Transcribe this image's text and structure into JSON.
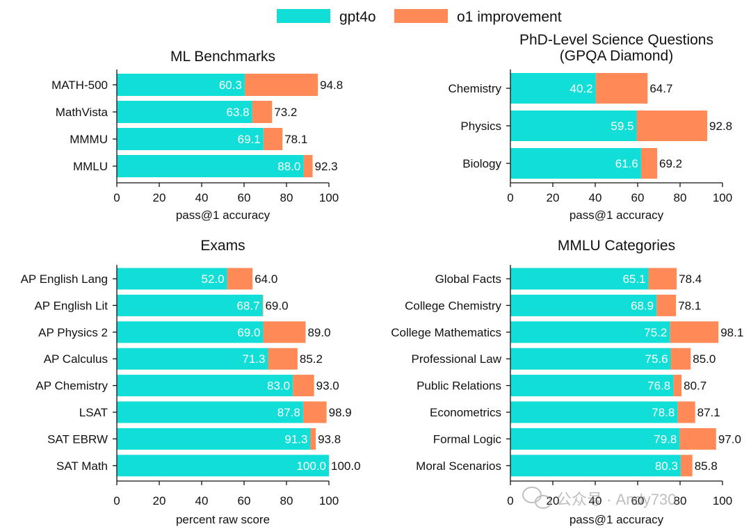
{
  "colors": {
    "gpt4o": "#12DED8",
    "o1_improvement": "#FF8A57",
    "axis": "#111111"
  },
  "legend": {
    "gpt4o": "gpt4o",
    "o1_improvement": "o1 improvement"
  },
  "watermark": "公众号 · Andy730",
  "chart_data": [
    {
      "type": "bar",
      "orientation": "horizontal",
      "stacked": true,
      "title": "ML Benchmarks",
      "xlabel": "pass@1 accuracy",
      "xlim": [
        0,
        100
      ],
      "xticks": [
        0,
        20,
        40,
        60,
        80,
        100
      ],
      "categories": [
        "MATH-500",
        "MathVista",
        "MMMU",
        "MMLU"
      ],
      "series": [
        {
          "name": "gpt4o",
          "values": [
            60.3,
            63.8,
            69.1,
            88.0
          ]
        },
        {
          "name": "o1 improvement",
          "totals": [
            94.8,
            73.2,
            78.1,
            92.3
          ]
        }
      ]
    },
    {
      "type": "bar",
      "orientation": "horizontal",
      "stacked": true,
      "title": "PhD-Level Science Questions\n(GPQA Diamond)",
      "xlabel": "pass@1 accuracy",
      "xlim": [
        0,
        100
      ],
      "xticks": [
        0,
        20,
        40,
        60,
        80,
        100
      ],
      "categories": [
        "Chemistry",
        "Physics",
        "Biology"
      ],
      "series": [
        {
          "name": "gpt4o",
          "values": [
            40.2,
            59.5,
            61.6
          ]
        },
        {
          "name": "o1 improvement",
          "totals": [
            64.7,
            92.8,
            69.2
          ]
        }
      ]
    },
    {
      "type": "bar",
      "orientation": "horizontal",
      "stacked": true,
      "title": "Exams",
      "xlabel": "percent raw score",
      "xlim": [
        0,
        100
      ],
      "xticks": [
        0,
        20,
        40,
        60,
        80,
        100
      ],
      "categories": [
        "AP English Lang",
        "AP English Lit",
        "AP Physics 2",
        "AP Calculus",
        "AP Chemistry",
        "LSAT",
        "SAT EBRW",
        "SAT Math"
      ],
      "series": [
        {
          "name": "gpt4o",
          "values": [
            52.0,
            68.7,
            69.0,
            71.3,
            83.0,
            87.8,
            91.3,
            100.0
          ]
        },
        {
          "name": "o1 improvement",
          "totals": [
            64.0,
            69.0,
            89.0,
            85.2,
            93.0,
            98.9,
            93.8,
            100.0
          ]
        }
      ]
    },
    {
      "type": "bar",
      "orientation": "horizontal",
      "stacked": true,
      "title": "MMLU Categories",
      "xlabel": "pass@1 accuracy",
      "xlim": [
        0,
        100
      ],
      "xticks": [
        0,
        20,
        40,
        60,
        80,
        100
      ],
      "categories": [
        "Global Facts",
        "College Chemistry",
        "College Mathematics",
        "Professional Law",
        "Public Relations",
        "Econometrics",
        "Formal Logic",
        "Moral Scenarios"
      ],
      "series": [
        {
          "name": "gpt4o",
          "values": [
            65.1,
            68.9,
            75.2,
            75.6,
            76.8,
            78.8,
            79.8,
            80.3
          ]
        },
        {
          "name": "o1 improvement",
          "totals": [
            78.4,
            78.1,
            98.1,
            85.0,
            80.7,
            87.1,
            97.0,
            85.8
          ]
        }
      ]
    }
  ]
}
